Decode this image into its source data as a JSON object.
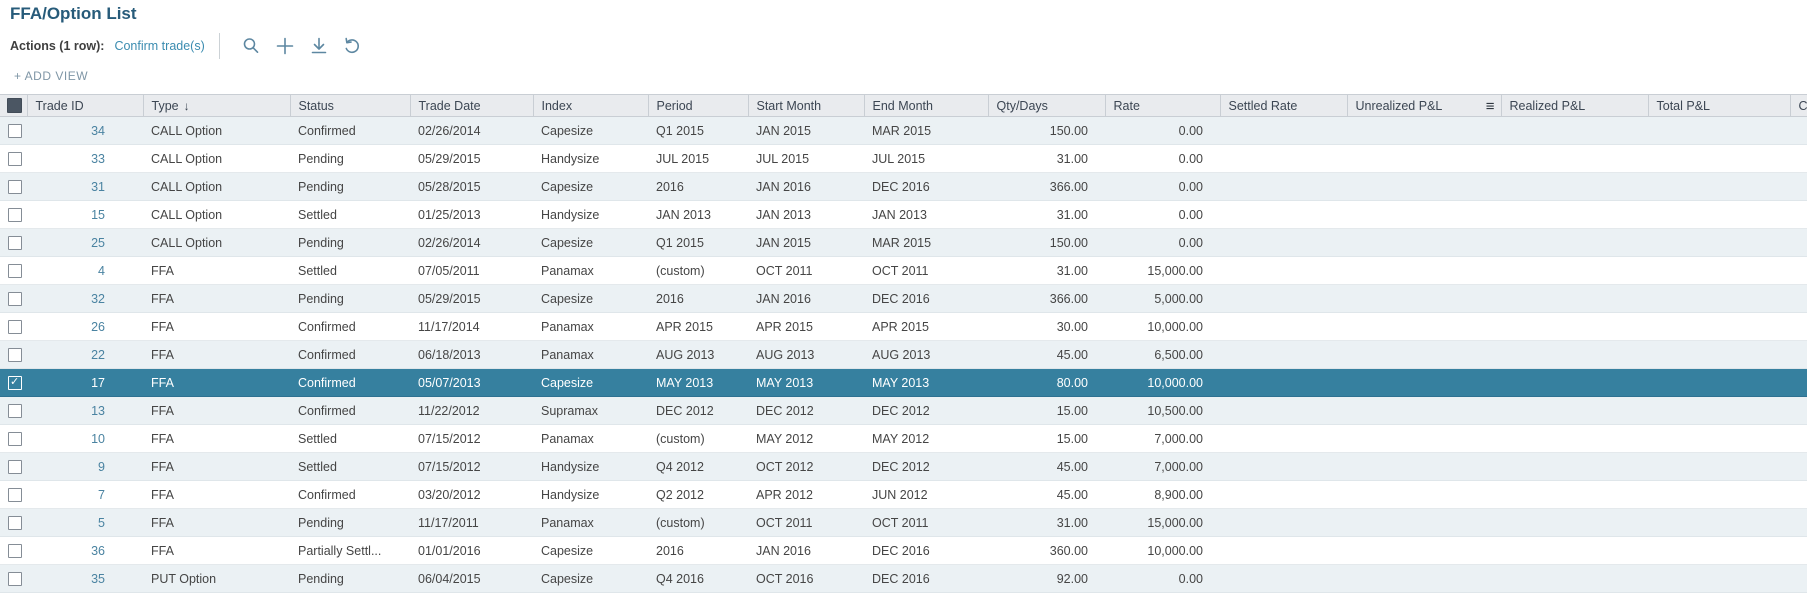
{
  "page": {
    "title": "FFA/Option List"
  },
  "toolbar": {
    "actions_label": "Actions (1 row):",
    "confirm_link": "Confirm trade(s)",
    "icons": [
      "search-icon",
      "add-icon",
      "download-icon",
      "undo-icon"
    ]
  },
  "add_view_label": "+ ADD VIEW",
  "table": {
    "columns": [
      {
        "label": "",
        "type": "checkbox"
      },
      {
        "label": "Trade ID"
      },
      {
        "label": "Type",
        "sort": "desc"
      },
      {
        "label": "Status"
      },
      {
        "label": "Trade Date"
      },
      {
        "label": "Index"
      },
      {
        "label": "Period"
      },
      {
        "label": "Start Month"
      },
      {
        "label": "End Month"
      },
      {
        "label": "Qty/Days"
      },
      {
        "label": "Rate"
      },
      {
        "label": "Settled Rate"
      },
      {
        "label": "Unrealized P&L",
        "menu_icon": true
      },
      {
        "label": "Realized P&L"
      },
      {
        "label": "Total P&L"
      },
      {
        "label": "C",
        "truncated": true
      }
    ],
    "rows": [
      {
        "selected": false,
        "trade_id": "34",
        "type": "CALL Option",
        "status": "Confirmed",
        "trade_date": "02/26/2014",
        "index": "Capesize",
        "period": "Q1 2015",
        "start_month": "JAN 2015",
        "end_month": "MAR 2015",
        "qty_days": "150.00",
        "rate": "0.00",
        "settled_rate": "",
        "unrealized_pl": "",
        "realized_pl": "",
        "total_pl": "",
        "extra": ""
      },
      {
        "selected": false,
        "trade_id": "33",
        "type": "CALL Option",
        "status": "Pending",
        "trade_date": "05/29/2015",
        "index": "Handysize",
        "period": "JUL 2015",
        "start_month": "JUL 2015",
        "end_month": "JUL 2015",
        "qty_days": "31.00",
        "rate": "0.00",
        "settled_rate": "",
        "unrealized_pl": "",
        "realized_pl": "",
        "total_pl": "",
        "extra": ""
      },
      {
        "selected": false,
        "trade_id": "31",
        "type": "CALL Option",
        "status": "Pending",
        "trade_date": "05/28/2015",
        "index": "Capesize",
        "period": "2016",
        "start_month": "JAN 2016",
        "end_month": "DEC 2016",
        "qty_days": "366.00",
        "rate": "0.00",
        "settled_rate": "",
        "unrealized_pl": "",
        "realized_pl": "",
        "total_pl": "",
        "extra": ""
      },
      {
        "selected": false,
        "trade_id": "15",
        "type": "CALL Option",
        "status": "Settled",
        "trade_date": "01/25/2013",
        "index": "Handysize",
        "period": "JAN 2013",
        "start_month": "JAN 2013",
        "end_month": "JAN 2013",
        "qty_days": "31.00",
        "rate": "0.00",
        "settled_rate": "",
        "unrealized_pl": "",
        "realized_pl": "",
        "total_pl": "",
        "extra": ""
      },
      {
        "selected": false,
        "trade_id": "25",
        "type": "CALL Option",
        "status": "Pending",
        "trade_date": "02/26/2014",
        "index": "Capesize",
        "period": "Q1 2015",
        "start_month": "JAN 2015",
        "end_month": "MAR 2015",
        "qty_days": "150.00",
        "rate": "0.00",
        "settled_rate": "",
        "unrealized_pl": "",
        "realized_pl": "",
        "total_pl": "",
        "extra": ""
      },
      {
        "selected": false,
        "trade_id": "4",
        "type": "FFA",
        "status": "Settled",
        "trade_date": "07/05/2011",
        "index": "Panamax",
        "period": "(custom)",
        "start_month": "OCT 2011",
        "end_month": "OCT 2011",
        "qty_days": "31.00",
        "rate": "15,000.00",
        "settled_rate": "",
        "unrealized_pl": "",
        "realized_pl": "",
        "total_pl": "",
        "extra": ""
      },
      {
        "selected": false,
        "trade_id": "32",
        "type": "FFA",
        "status": "Pending",
        "trade_date": "05/29/2015",
        "index": "Capesize",
        "period": "2016",
        "start_month": "JAN 2016",
        "end_month": "DEC 2016",
        "qty_days": "366.00",
        "rate": "5,000.00",
        "settled_rate": "",
        "unrealized_pl": "",
        "realized_pl": "",
        "total_pl": "",
        "extra": ""
      },
      {
        "selected": false,
        "trade_id": "26",
        "type": "FFA",
        "status": "Confirmed",
        "trade_date": "11/17/2014",
        "index": "Panamax",
        "period": "APR 2015",
        "start_month": "APR 2015",
        "end_month": "APR 2015",
        "qty_days": "30.00",
        "rate": "10,000.00",
        "settled_rate": "",
        "unrealized_pl": "",
        "realized_pl": "",
        "total_pl": "",
        "extra": ""
      },
      {
        "selected": false,
        "trade_id": "22",
        "type": "FFA",
        "status": "Confirmed",
        "trade_date": "06/18/2013",
        "index": "Panamax",
        "period": "AUG 2013",
        "start_month": "AUG 2013",
        "end_month": "AUG 2013",
        "qty_days": "45.00",
        "rate": "6,500.00",
        "settled_rate": "",
        "unrealized_pl": "",
        "realized_pl": "",
        "total_pl": "",
        "extra": ""
      },
      {
        "selected": true,
        "trade_id": "17",
        "type": "FFA",
        "status": "Confirmed",
        "trade_date": "05/07/2013",
        "index": "Capesize",
        "period": "MAY 2013",
        "start_month": "MAY 2013",
        "end_month": "MAY 2013",
        "qty_days": "80.00",
        "rate": "10,000.00",
        "settled_rate": "",
        "unrealized_pl": "",
        "realized_pl": "",
        "total_pl": "",
        "extra": ""
      },
      {
        "selected": false,
        "trade_id": "13",
        "type": "FFA",
        "status": "Confirmed",
        "trade_date": "11/22/2012",
        "index": "Supramax",
        "period": "DEC 2012",
        "start_month": "DEC 2012",
        "end_month": "DEC 2012",
        "qty_days": "15.00",
        "rate": "10,500.00",
        "settled_rate": "",
        "unrealized_pl": "",
        "realized_pl": "",
        "total_pl": "",
        "extra": ""
      },
      {
        "selected": false,
        "trade_id": "10",
        "type": "FFA",
        "status": "Settled",
        "trade_date": "07/15/2012",
        "index": "Panamax",
        "period": "(custom)",
        "start_month": "MAY 2012",
        "end_month": "MAY 2012",
        "qty_days": "15.00",
        "rate": "7,000.00",
        "settled_rate": "",
        "unrealized_pl": "",
        "realized_pl": "",
        "total_pl": "",
        "extra": ""
      },
      {
        "selected": false,
        "trade_id": "9",
        "type": "FFA",
        "status": "Settled",
        "trade_date": "07/15/2012",
        "index": "Handysize",
        "period": "Q4 2012",
        "start_month": "OCT 2012",
        "end_month": "DEC 2012",
        "qty_days": "45.00",
        "rate": "7,000.00",
        "settled_rate": "",
        "unrealized_pl": "",
        "realized_pl": "",
        "total_pl": "",
        "extra": ""
      },
      {
        "selected": false,
        "trade_id": "7",
        "type": "FFA",
        "status": "Confirmed",
        "trade_date": "03/20/2012",
        "index": "Handysize",
        "period": "Q2 2012",
        "start_month": "APR 2012",
        "end_month": "JUN 2012",
        "qty_days": "45.00",
        "rate": "8,900.00",
        "settled_rate": "",
        "unrealized_pl": "",
        "realized_pl": "",
        "total_pl": "",
        "extra": ""
      },
      {
        "selected": false,
        "trade_id": "5",
        "type": "FFA",
        "status": "Pending",
        "trade_date": "11/17/2011",
        "index": "Panamax",
        "period": "(custom)",
        "start_month": "OCT 2011",
        "end_month": "OCT 2011",
        "qty_days": "31.00",
        "rate": "15,000.00",
        "settled_rate": "",
        "unrealized_pl": "",
        "realized_pl": "",
        "total_pl": "",
        "extra": ""
      },
      {
        "selected": false,
        "trade_id": "36",
        "type": "FFA",
        "status": "Partially Settl...",
        "trade_date": "01/01/2016",
        "index": "Capesize",
        "period": "2016",
        "start_month": "JAN 2016",
        "end_month": "DEC 2016",
        "qty_days": "360.00",
        "rate": "10,000.00",
        "settled_rate": "",
        "unrealized_pl": "",
        "realized_pl": "",
        "total_pl": "",
        "extra": ""
      },
      {
        "selected": false,
        "trade_id": "35",
        "type": "PUT Option",
        "status": "Pending",
        "trade_date": "06/04/2015",
        "index": "Capesize",
        "period": "Q4 2016",
        "start_month": "OCT 2016",
        "end_month": "DEC 2016",
        "qty_days": "92.00",
        "rate": "0.00",
        "settled_rate": "",
        "unrealized_pl": "",
        "realized_pl": "",
        "total_pl": "",
        "extra": ""
      }
    ]
  }
}
